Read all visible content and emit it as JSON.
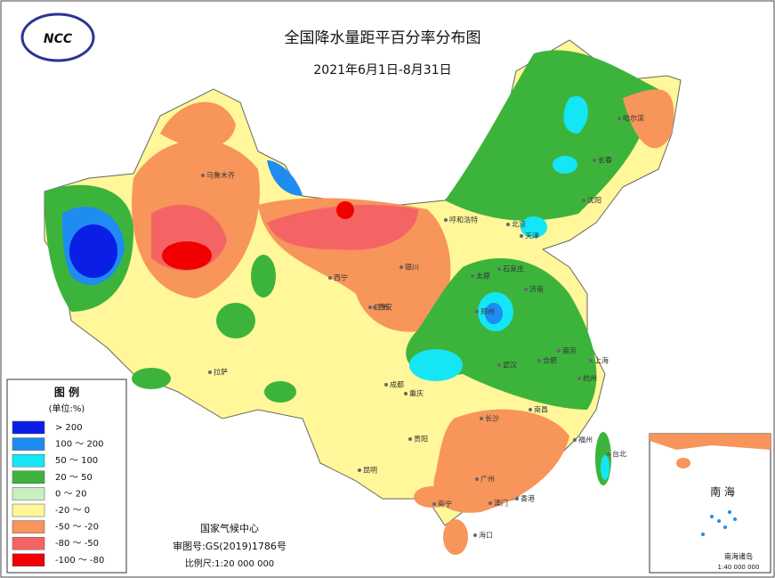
{
  "header": {
    "title": "全国降水量距平百分率分布图",
    "subtitle": "2021年6月1日-8月31日"
  },
  "legend": {
    "title": "图 例",
    "unit": "(单位:%)",
    "items": [
      {
        "label": "> 200",
        "color": "#0a1ee6"
      },
      {
        "label": "100 ～ 200",
        "color": "#1e8cf0"
      },
      {
        "label": "50 ～ 100",
        "color": "#14e6f5"
      },
      {
        "label": "20 ～ 50",
        "color": "#3cb43c"
      },
      {
        "label": "0 ～ 20",
        "color": "#c8f0c0"
      },
      {
        "label": "-20 ～ 0",
        "color": "#fff799"
      },
      {
        "label": "-50 ～ -20",
        "color": "#f7955a"
      },
      {
        "label": "-80 ～ -50",
        "color": "#f56464"
      },
      {
        "label": "-100 ～ -80",
        "color": "#f00000"
      }
    ]
  },
  "footer": {
    "agency": "国家气候中心",
    "review": "审图号:GS(2019)1786号",
    "scale": "比例尺:1:20 000 000"
  },
  "inset": {
    "sea": "南 海",
    "islands": "南海诸岛",
    "scale": "1:40 000 000"
  },
  "cities": [
    "乌鲁木齐",
    "拉萨",
    "西宁",
    "兰州",
    "银川",
    "呼和浩特",
    "北京",
    "天津",
    "石家庄",
    "太原",
    "济南",
    "郑州",
    "西安",
    "成都",
    "重庆",
    "武汉",
    "合肥",
    "南京",
    "上海",
    "杭州",
    "长沙",
    "南昌",
    "福州",
    "台北",
    "贵阳",
    "昆明",
    "南宁",
    "广州",
    "香港",
    "澳门",
    "海口",
    "哈尔滨",
    "长春",
    "沈阳"
  ]
}
